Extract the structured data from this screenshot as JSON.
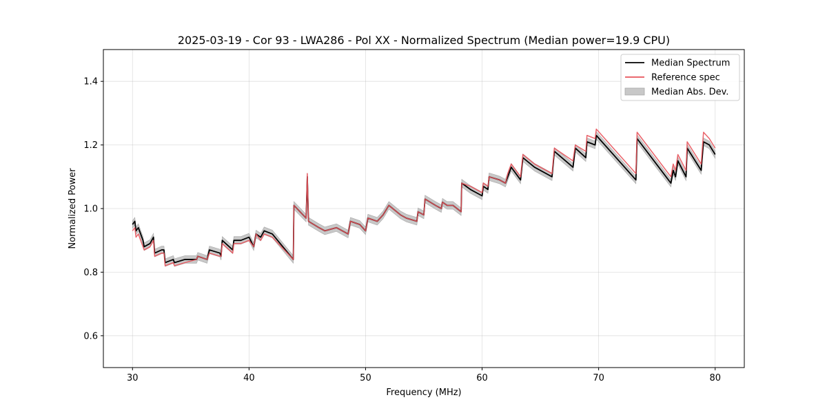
{
  "chart_data": {
    "type": "line",
    "title": "2025-03-19 - Cor 93 - LWA286 - Pol XX - Normalized Spectrum (Median power=19.9 CPU)",
    "xlabel": "Frequency (MHz)",
    "ylabel": "Normalized Power",
    "xlim": [
      27.5,
      82.5
    ],
    "ylim": [
      0.5,
      1.5
    ],
    "xticks": [
      30,
      40,
      50,
      60,
      70,
      80
    ],
    "yticks": [
      0.6,
      0.8,
      1.0,
      1.2,
      1.4
    ],
    "xtick_labels": [
      "30",
      "40",
      "50",
      "60",
      "70",
      "80"
    ],
    "ytick_labels": [
      "0.6",
      "0.8",
      "1.0",
      "1.2",
      "1.4"
    ],
    "grid": true,
    "legend_position": "top-right",
    "mad_width": 0.012,
    "series": [
      {
        "name": "Median Spectrum",
        "color": "#000000",
        "points": [
          [
            30.0,
            0.95
          ],
          [
            30.2,
            0.96
          ],
          [
            30.3,
            0.93
          ],
          [
            30.5,
            0.94
          ],
          [
            30.7,
            0.92
          ],
          [
            30.9,
            0.9
          ],
          [
            31.0,
            0.88
          ],
          [
            31.5,
            0.89
          ],
          [
            31.8,
            0.91
          ],
          [
            31.9,
            0.86
          ],
          [
            32.5,
            0.87
          ],
          [
            32.7,
            0.87
          ],
          [
            32.8,
            0.83
          ],
          [
            33.5,
            0.84
          ],
          [
            33.6,
            0.83
          ],
          [
            34.5,
            0.84
          ],
          [
            35.5,
            0.84
          ],
          [
            35.6,
            0.85
          ],
          [
            36.4,
            0.84
          ],
          [
            36.6,
            0.87
          ],
          [
            37.5,
            0.86
          ],
          [
            37.6,
            0.85
          ],
          [
            37.7,
            0.9
          ],
          [
            38.6,
            0.87
          ],
          [
            38.7,
            0.9
          ],
          [
            39.3,
            0.9
          ],
          [
            40.0,
            0.91
          ],
          [
            40.4,
            0.88
          ],
          [
            40.6,
            0.92
          ],
          [
            41.0,
            0.91
          ],
          [
            41.3,
            0.93
          ],
          [
            42.0,
            0.92
          ],
          [
            43.8,
            0.84
          ],
          [
            43.85,
            1.01
          ],
          [
            44.9,
            0.97
          ],
          [
            45.0,
            1.1
          ],
          [
            45.1,
            0.96
          ],
          [
            46.0,
            0.94
          ],
          [
            46.5,
            0.93
          ],
          [
            47.5,
            0.94
          ],
          [
            48.5,
            0.92
          ],
          [
            48.7,
            0.96
          ],
          [
            49.5,
            0.95
          ],
          [
            50.0,
            0.93
          ],
          [
            50.2,
            0.97
          ],
          [
            51.0,
            0.96
          ],
          [
            51.5,
            0.98
          ],
          [
            52.0,
            1.01
          ],
          [
            53.0,
            0.98
          ],
          [
            53.5,
            0.97
          ],
          [
            54.4,
            0.96
          ],
          [
            54.5,
            0.99
          ],
          [
            55.0,
            0.98
          ],
          [
            55.1,
            1.03
          ],
          [
            56.0,
            1.01
          ],
          [
            56.5,
            1.0
          ],
          [
            56.6,
            1.02
          ],
          [
            57.0,
            1.01
          ],
          [
            57.5,
            1.01
          ],
          [
            58.2,
            0.99
          ],
          [
            58.25,
            1.08
          ],
          [
            59.0,
            1.06
          ],
          [
            60.0,
            1.04
          ],
          [
            60.1,
            1.07
          ],
          [
            60.5,
            1.06
          ],
          [
            60.6,
            1.1
          ],
          [
            61.5,
            1.09
          ],
          [
            62.0,
            1.08
          ],
          [
            62.2,
            1.1
          ],
          [
            62.5,
            1.13
          ],
          [
            63.3,
            1.09
          ],
          [
            63.5,
            1.16
          ],
          [
            64.5,
            1.13
          ],
          [
            66.0,
            1.1
          ],
          [
            66.2,
            1.18
          ],
          [
            67.8,
            1.13
          ],
          [
            68.0,
            1.19
          ],
          [
            68.9,
            1.16
          ],
          [
            69.0,
            1.21
          ],
          [
            69.7,
            1.2
          ],
          [
            69.8,
            1.23
          ],
          [
            73.2,
            1.09
          ],
          [
            73.3,
            1.22
          ],
          [
            76.2,
            1.08
          ],
          [
            76.4,
            1.12
          ],
          [
            76.6,
            1.1
          ],
          [
            76.8,
            1.15
          ],
          [
            77.5,
            1.1
          ],
          [
            77.6,
            1.19
          ],
          [
            78.8,
            1.12
          ],
          [
            79.0,
            1.21
          ],
          [
            79.5,
            1.2
          ],
          [
            80.0,
            1.17
          ]
        ]
      },
      {
        "name": "Reference spec",
        "color": "#e8525a",
        "points": [
          [
            30.0,
            0.93
          ],
          [
            30.2,
            0.94
          ],
          [
            30.3,
            0.91
          ],
          [
            30.5,
            0.92
          ],
          [
            30.7,
            0.9
          ],
          [
            30.9,
            0.88
          ],
          [
            31.0,
            0.87
          ],
          [
            31.5,
            0.88
          ],
          [
            31.8,
            0.9
          ],
          [
            31.9,
            0.85
          ],
          [
            32.5,
            0.86
          ],
          [
            32.7,
            0.86
          ],
          [
            32.8,
            0.82
          ],
          [
            33.5,
            0.83
          ],
          [
            33.6,
            0.82
          ],
          [
            34.5,
            0.83
          ],
          [
            35.5,
            0.84
          ],
          [
            35.6,
            0.85
          ],
          [
            36.4,
            0.84
          ],
          [
            36.6,
            0.86
          ],
          [
            37.5,
            0.85
          ],
          [
            37.6,
            0.85
          ],
          [
            37.7,
            0.89
          ],
          [
            38.6,
            0.86
          ],
          [
            38.7,
            0.89
          ],
          [
            39.3,
            0.89
          ],
          [
            40.0,
            0.9
          ],
          [
            40.4,
            0.88
          ],
          [
            40.6,
            0.92
          ],
          [
            41.0,
            0.9
          ],
          [
            41.3,
            0.92
          ],
          [
            42.0,
            0.91
          ],
          [
            43.8,
            0.84
          ],
          [
            43.85,
            1.01
          ],
          [
            44.9,
            0.97
          ],
          [
            45.0,
            1.11
          ],
          [
            45.1,
            0.96
          ],
          [
            46.0,
            0.94
          ],
          [
            46.5,
            0.93
          ],
          [
            47.5,
            0.94
          ],
          [
            48.5,
            0.92
          ],
          [
            48.7,
            0.96
          ],
          [
            49.5,
            0.95
          ],
          [
            50.0,
            0.93
          ],
          [
            50.2,
            0.97
          ],
          [
            51.0,
            0.96
          ],
          [
            51.5,
            0.98
          ],
          [
            52.0,
            1.01
          ],
          [
            53.0,
            0.98
          ],
          [
            53.5,
            0.97
          ],
          [
            54.4,
            0.96
          ],
          [
            54.5,
            0.99
          ],
          [
            55.0,
            0.98
          ],
          [
            55.1,
            1.03
          ],
          [
            56.0,
            1.01
          ],
          [
            56.5,
            1.0
          ],
          [
            56.6,
            1.02
          ],
          [
            57.0,
            1.01
          ],
          [
            57.5,
            1.01
          ],
          [
            58.2,
            0.99
          ],
          [
            58.25,
            1.08
          ],
          [
            59.0,
            1.07
          ],
          [
            60.0,
            1.05
          ],
          [
            60.1,
            1.08
          ],
          [
            60.5,
            1.07
          ],
          [
            60.6,
            1.1
          ],
          [
            61.5,
            1.09
          ],
          [
            62.0,
            1.08
          ],
          [
            62.2,
            1.11
          ],
          [
            62.5,
            1.14
          ],
          [
            63.3,
            1.1
          ],
          [
            63.5,
            1.17
          ],
          [
            64.5,
            1.14
          ],
          [
            66.0,
            1.11
          ],
          [
            66.2,
            1.19
          ],
          [
            67.8,
            1.15
          ],
          [
            68.0,
            1.2
          ],
          [
            68.9,
            1.18
          ],
          [
            69.0,
            1.23
          ],
          [
            69.7,
            1.22
          ],
          [
            69.8,
            1.25
          ],
          [
            73.2,
            1.11
          ],
          [
            73.3,
            1.24
          ],
          [
            76.2,
            1.1
          ],
          [
            76.4,
            1.14
          ],
          [
            76.6,
            1.12
          ],
          [
            76.8,
            1.17
          ],
          [
            77.5,
            1.12
          ],
          [
            77.6,
            1.21
          ],
          [
            78.8,
            1.14
          ],
          [
            79.0,
            1.24
          ],
          [
            79.5,
            1.22
          ],
          [
            80.0,
            1.19
          ]
        ]
      }
    ],
    "legend": [
      {
        "label": "Median Spectrum",
        "kind": "line",
        "color": "#000000"
      },
      {
        "label": "Reference spec",
        "kind": "line",
        "color": "#e8525a"
      },
      {
        "label": "Median Abs. Dev.",
        "kind": "patch",
        "color": "#c8c8c8"
      }
    ]
  }
}
